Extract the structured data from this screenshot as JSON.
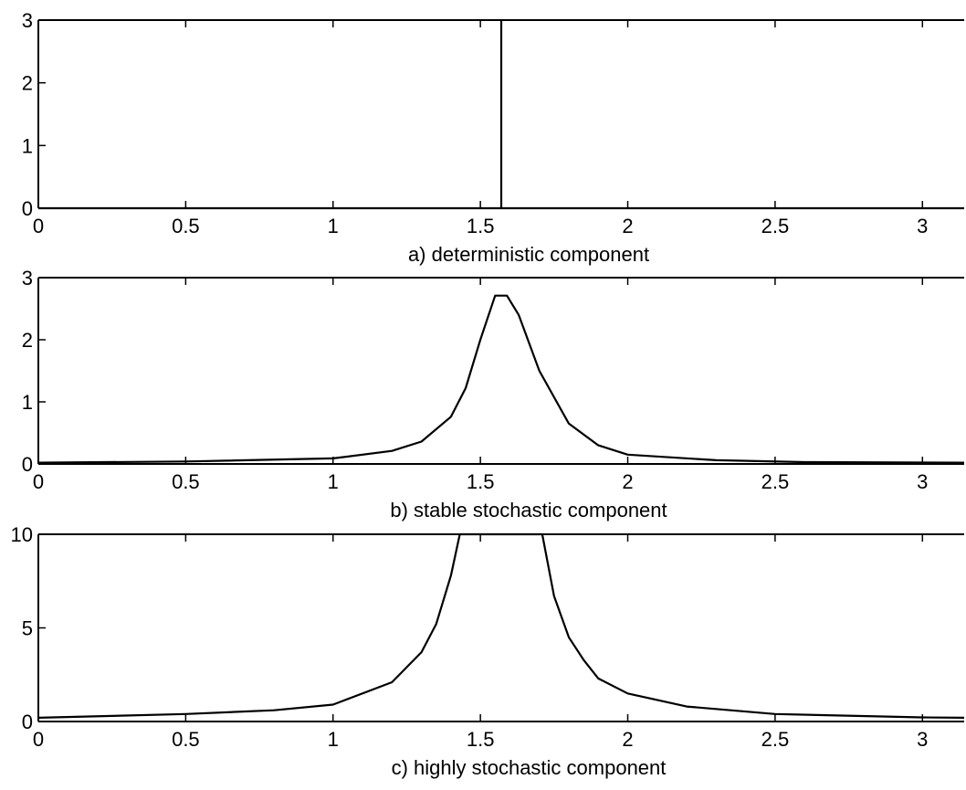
{
  "chart_data": [
    {
      "type": "line",
      "title": "",
      "xlabel": "a) deterministic component",
      "ylabel": "",
      "xlim": [
        0,
        3.1416
      ],
      "ylim": [
        0,
        3
      ],
      "xticks": [
        0,
        0.5,
        1,
        1.5,
        2,
        2.5,
        3
      ],
      "xtick_labels": [
        "0",
        "0.5",
        "1",
        "1.5",
        "2",
        "2.5",
        "3"
      ],
      "yticks": [
        0,
        1,
        2,
        3
      ],
      "ytick_labels": [
        "0",
        "1",
        "2",
        "3"
      ],
      "grid": false,
      "series": [
        {
          "x": [
            0,
            1.5708,
            1.5708,
            1.5708,
            3.1416
          ],
          "y": [
            0,
            0,
            3,
            0,
            0
          ]
        }
      ]
    },
    {
      "type": "line",
      "title": "",
      "xlabel": "b) stable stochastic component",
      "ylabel": "",
      "xlim": [
        0,
        3.1416
      ],
      "ylim": [
        0,
        3
      ],
      "xticks": [
        0,
        0.5,
        1,
        1.5,
        2,
        2.5,
        3
      ],
      "xtick_labels": [
        "0",
        "0.5",
        "1",
        "1.5",
        "2",
        "2.5",
        "3"
      ],
      "yticks": [
        0,
        1,
        2,
        3
      ],
      "ytick_labels": [
        "0",
        "1",
        "2",
        "3"
      ],
      "grid": false,
      "series": [
        {
          "x": [
            0,
            0.5,
            1.0,
            1.2,
            1.3,
            1.4,
            1.45,
            1.5,
            1.55,
            1.59,
            1.63,
            1.7,
            1.8,
            1.9,
            2.0,
            2.3,
            2.6,
            3.1416
          ],
          "y": [
            0.02,
            0.04,
            0.09,
            0.21,
            0.36,
            0.76,
            1.22,
            2.0,
            2.71,
            2.71,
            2.4,
            1.5,
            0.65,
            0.3,
            0.15,
            0.06,
            0.03,
            0.02
          ]
        }
      ]
    },
    {
      "type": "line",
      "title": "",
      "xlabel": "c) highly stochastic component",
      "ylabel": "",
      "xlim": [
        0,
        3.1416
      ],
      "ylim": [
        0,
        10
      ],
      "xticks": [
        0,
        0.5,
        1,
        1.5,
        2,
        2.5,
        3
      ],
      "xtick_labels": [
        "0",
        "0.5",
        "1",
        "1.5",
        "2",
        "2.5",
        "3"
      ],
      "yticks": [
        0,
        5,
        10
      ],
      "ytick_labels": [
        "0",
        "5",
        "10"
      ],
      "grid": false,
      "series": [
        {
          "x": [
            0,
            0.5,
            0.8,
            1.0,
            1.2,
            1.3,
            1.35,
            1.4,
            1.43,
            1.71,
            1.75,
            1.8,
            1.85,
            1.9,
            2.0,
            2.2,
            2.5,
            3.0,
            3.1416
          ],
          "y": [
            0.2,
            0.4,
            0.6,
            0.9,
            2.1,
            3.7,
            5.2,
            7.8,
            10,
            10,
            6.7,
            4.5,
            3.3,
            2.3,
            1.5,
            0.8,
            0.4,
            0.22,
            0.2
          ]
        }
      ]
    }
  ]
}
